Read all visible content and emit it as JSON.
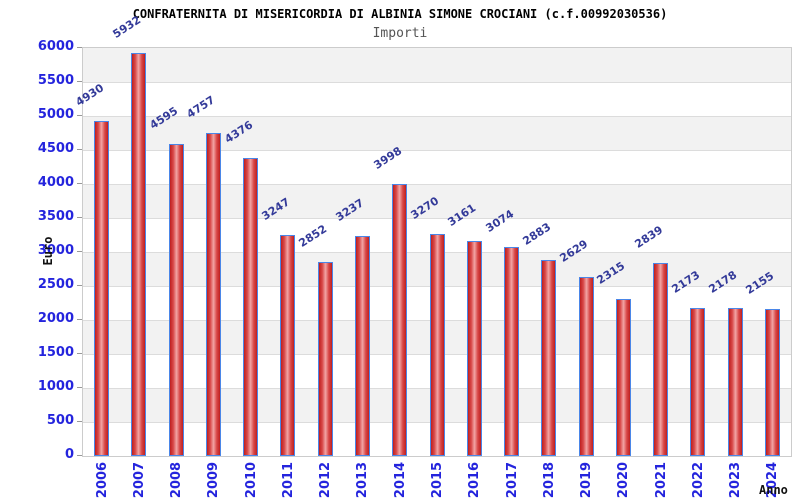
{
  "chart_data": {
    "type": "bar",
    "title": "CONFRATERNITA DI MISERICORDIA DI ALBINIA SIMONE CROCIANI (c.f.00992030536)",
    "subtitle": "Importi",
    "xlabel": "Anno",
    "ylabel": "Euro",
    "categories": [
      "2006",
      "2007",
      "2008",
      "2009",
      "2010",
      "2011",
      "2012",
      "2013",
      "2014",
      "2015",
      "2016",
      "2017",
      "2018",
      "2019",
      "2020",
      "2021",
      "2022",
      "2023",
      "2024"
    ],
    "values": [
      4930,
      5932,
      4595,
      4757,
      4376,
      3247,
      2852,
      3237,
      3998,
      3270,
      3161,
      3074,
      2883,
      2629,
      2315,
      2839,
      2173,
      2178,
      2155
    ],
    "ylim": [
      0,
      6000
    ],
    "yticks": [
      0,
      500,
      1000,
      1500,
      2000,
      2500,
      3000,
      3500,
      4000,
      4500,
      5000,
      5500,
      6000
    ],
    "grid": "horizontal alternating bands",
    "legend": "none",
    "bar_labels_shown": true,
    "colors": {
      "bar_edge": "#bf1f1f",
      "bar_mid_shade": "#d84848",
      "bar_highlight": "#f2a5a5",
      "bar_border": "#4a86e8",
      "axis_tick_label": "#2424dd",
      "value_label": "#333a99",
      "band_gray": "#f2f2f2",
      "band_white": "#ffffff",
      "gridline": "#dcdcdc",
      "plot_border": "#cccccc",
      "title": "#000000",
      "subtitle": "#555555",
      "axis_title": "#111111"
    }
  }
}
